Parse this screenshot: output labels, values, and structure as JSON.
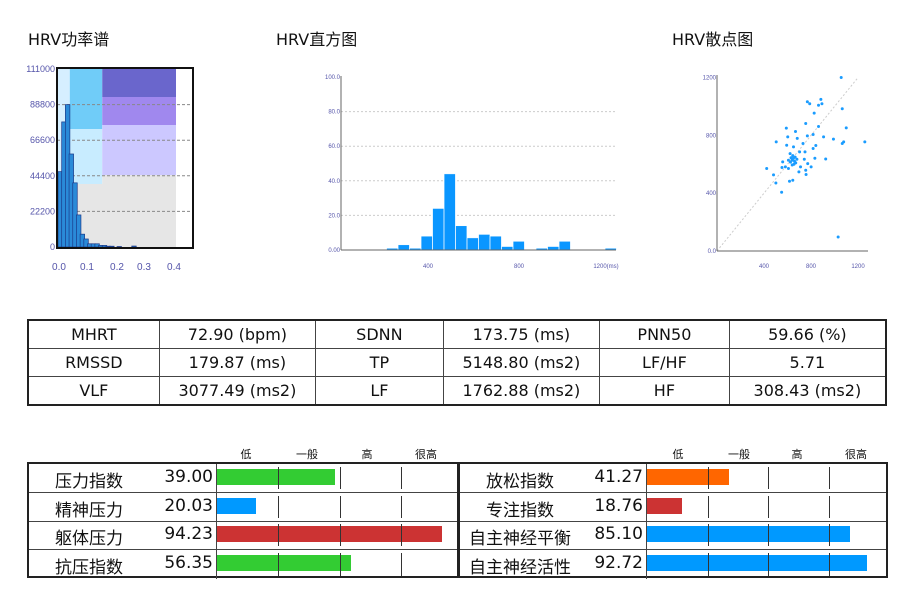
{
  "titles": {
    "power": "HRV功率谱",
    "hist": "HRV直方图",
    "scatter": "HRV散点图"
  },
  "chart_data": [
    {
      "type": "bar",
      "title": "HRV功率谱",
      "xlabel": "",
      "ylabel": "",
      "yticks": [
        "111000",
        "88800",
        "66600",
        "44400",
        "22200",
        "0"
      ],
      "xticks": [
        "0.0",
        "0.1",
        "0.2",
        "0.3",
        "0.4"
      ],
      "ylim": [
        0,
        111000
      ],
      "xlim": [
        0,
        0.4
      ],
      "x": [
        0.0,
        0.0125,
        0.025,
        0.0375,
        0.05,
        0.0625,
        0.075,
        0.0875,
        0.1,
        0.1125,
        0.125,
        0.1375,
        0.15,
        0.1625,
        0.175,
        0.2,
        0.25
      ],
      "values": [
        47000,
        78000,
        88800,
        58000,
        40000,
        20000,
        8000,
        5000,
        2000,
        2000,
        2000,
        1000,
        1000,
        500,
        500,
        300,
        600
      ],
      "bands": [
        {
          "from": 0.0,
          "to": 0.04,
          "color": "#d6efff"
        },
        {
          "from": 0.04,
          "to": 0.15,
          "color": "#66ccff"
        },
        {
          "from": 0.15,
          "to": 0.4,
          "color": "#7766dd"
        }
      ]
    },
    {
      "type": "bar",
      "title": "HRV直方图",
      "xtick_labels": [
        "400",
        "800",
        "1200(ms)"
      ],
      "ytick_labels": [
        "0.00",
        "20.0",
        "40.0",
        "60.0",
        "80.0",
        "100.0"
      ],
      "ylim": [
        0,
        100
      ],
      "xlim": [
        0,
        1220
      ],
      "bin_start": [
        220,
        270,
        320,
        370,
        420,
        470,
        520,
        570,
        620,
        670,
        720,
        770,
        870,
        920,
        970,
        1170
      ],
      "values": [
        1,
        3,
        1,
        8,
        24,
        44,
        14,
        7,
        9,
        8,
        2,
        5,
        1,
        2,
        5,
        1
      ],
      "bin_width": 50
    },
    {
      "type": "scatter",
      "title": "HRV散点图",
      "xtick_labels": [
        "400",
        "800",
        "1200"
      ],
      "ytick_labels": [
        "0.0",
        "400",
        "800",
        "1200"
      ],
      "xlim": [
        0,
        1260
      ],
      "ylim": [
        0,
        1250
      ],
      "points": [
        [
          1057,
          1201
        ],
        [
          769,
          1033
        ],
        [
          789,
          1019
        ],
        [
          884,
          1049
        ],
        [
          864,
          1009
        ],
        [
          893,
          1019
        ],
        [
          1066,
          984
        ],
        [
          827,
          954
        ],
        [
          755,
          882
        ],
        [
          864,
          862
        ],
        [
          1100,
          852
        ],
        [
          590,
          850
        ],
        [
          668,
          827
        ],
        [
          769,
          797
        ],
        [
          818,
          806
        ],
        [
          907,
          790
        ],
        [
          991,
          774
        ],
        [
          1258,
          755
        ],
        [
          1078,
          755
        ],
        [
          1066,
          744
        ],
        [
          504,
          755
        ],
        [
          602,
          790
        ],
        [
          683,
          779
        ],
        [
          732,
          744
        ],
        [
          841,
          730
        ],
        [
          818,
          709
        ],
        [
          749,
          686
        ],
        [
          593,
          732
        ],
        [
          651,
          721
        ],
        [
          703,
          686
        ],
        [
          622,
          674
        ],
        [
          608,
          628
        ],
        [
          559,
          617
        ],
        [
          833,
          642
        ],
        [
          925,
          637
        ],
        [
          743,
          635
        ],
        [
          772,
          605
        ],
        [
          801,
          582
        ],
        [
          582,
          582
        ],
        [
          608,
          571
        ],
        [
          553,
          578
        ],
        [
          711,
          582
        ],
        [
          755,
          559
        ],
        [
          697,
          548
        ],
        [
          423,
          571
        ],
        [
          481,
          527
        ],
        [
          501,
          471
        ],
        [
          617,
          483
        ],
        [
          645,
          490
        ],
        [
          758,
          529
        ],
        [
          550,
          407
        ],
        [
          1031,
          97
        ],
        [
          639,
          628
        ],
        [
          650,
          640
        ],
        [
          660,
          620
        ],
        [
          630,
          645
        ],
        [
          670,
          610
        ],
        [
          645,
          660
        ],
        [
          655,
          600
        ],
        [
          625,
          615
        ],
        [
          680,
          635
        ],
        [
          640,
          595
        ],
        [
          665,
          650
        ]
      ]
    }
  ],
  "metrics": [
    [
      "MHRT",
      "72.90 (bpm)",
      "SDNN",
      "173.75 (ms)",
      "PNN50",
      "59.66 (%)"
    ],
    [
      "RMSSD",
      "179.87 (ms)",
      "TP",
      "5148.80 (ms2)",
      "LF/HF",
      "5.71"
    ],
    [
      "VLF",
      "3077.49 (ms2)",
      "LF",
      "1762.88 (ms2)",
      "HF",
      "308.43 (ms2)"
    ]
  ],
  "scale": [
    "低",
    "一般",
    "高",
    "很高"
  ],
  "left_indices": [
    {
      "label": "压力指数",
      "value": "39.00",
      "fill": 0.48,
      "color": "#33cc33"
    },
    {
      "label": "精神压力",
      "value": "20.03",
      "fill": 0.16,
      "color": "#0099ff"
    },
    {
      "label": "躯体压力",
      "value": "94.23",
      "fill": 0.92,
      "color": "#cc3333"
    },
    {
      "label": "抗压指数",
      "value": "56.35",
      "fill": 0.545,
      "color": "#33cc33"
    }
  ],
  "right_indices": [
    {
      "label": "放松指数",
      "value": "41.27",
      "fill": 0.34,
      "color": "#ff6600"
    },
    {
      "label": "专注指数",
      "value": "18.76",
      "fill": 0.145,
      "color": "#cc3333"
    },
    {
      "label": "自主神经平衡",
      "value": "85.10",
      "fill": 0.84,
      "color": "#0099ff"
    },
    {
      "label": "自主神经活性",
      "value": "92.72",
      "fill": 0.91,
      "color": "#0099ff"
    }
  ]
}
